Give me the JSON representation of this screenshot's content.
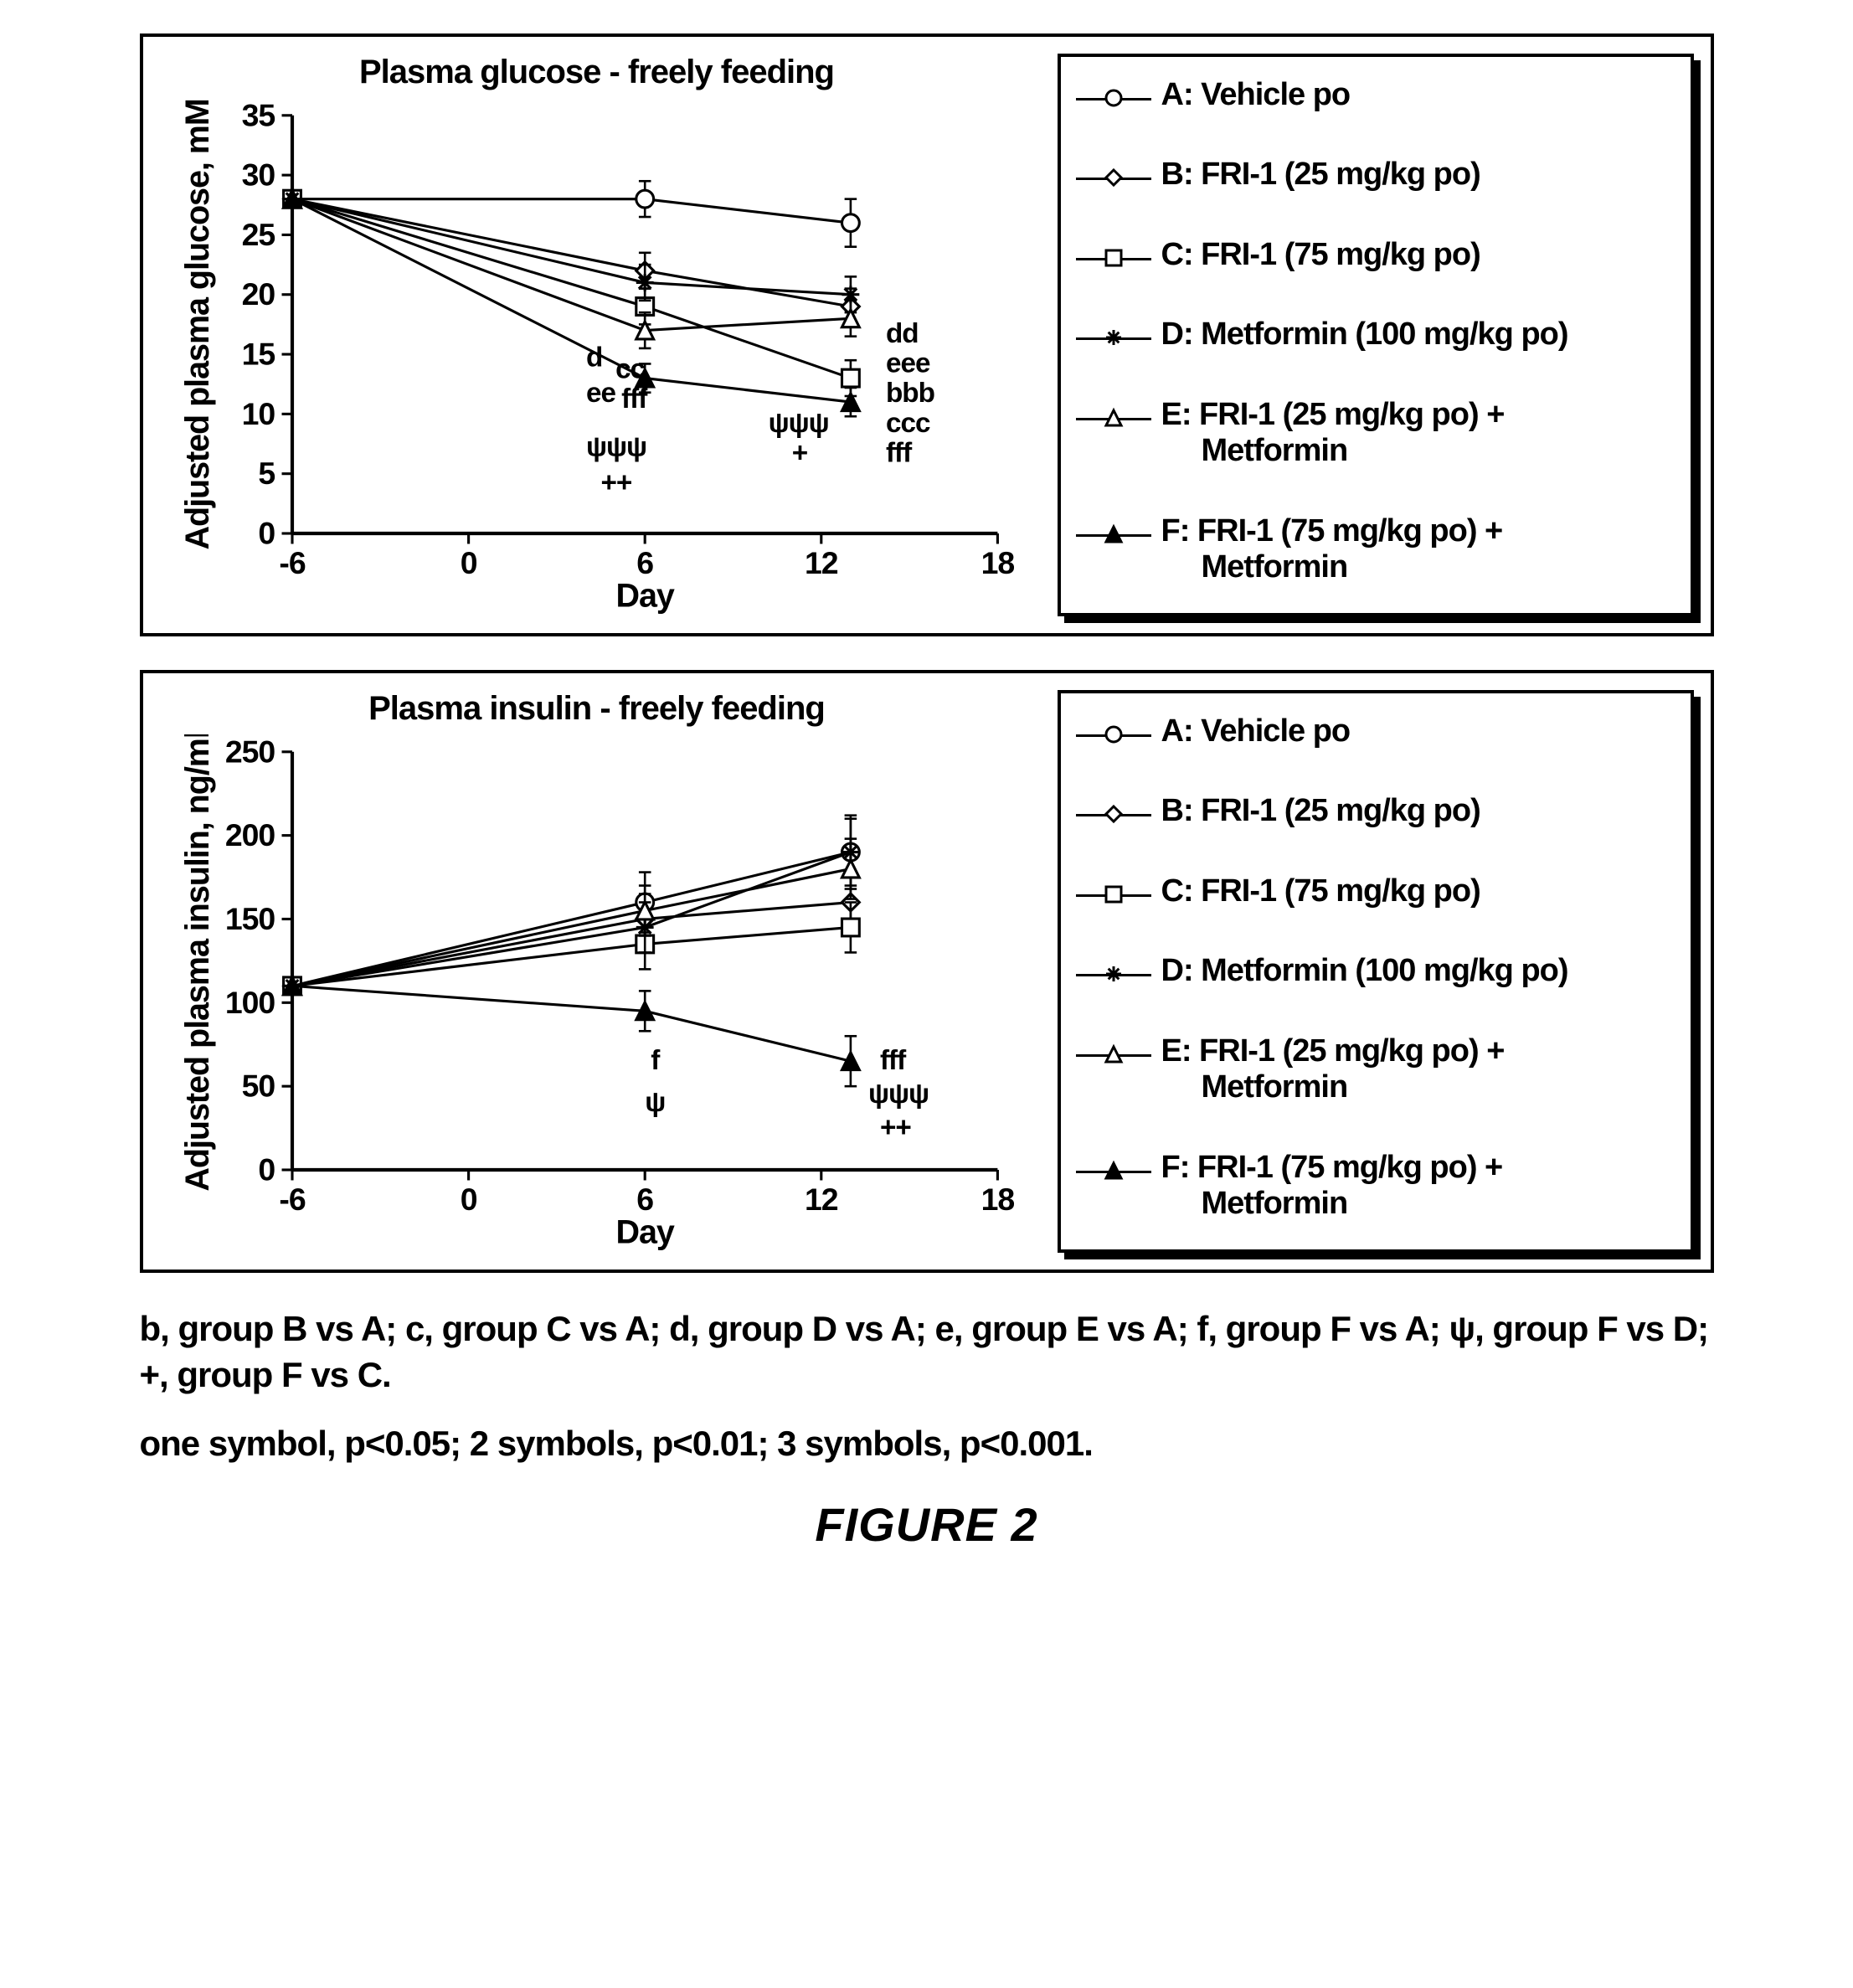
{
  "figure_label": "FIGURE 2",
  "caption_line1": "b, group B vs A; c, group C vs A; d, group D vs A; e, group E vs A; f, group F vs A; ψ, group F vs D;",
  "caption_line2": "+, group F vs C.",
  "caption_line3": "one symbol, p<0.05; 2 symbols, p<0.01; 3 symbols, p<0.001.",
  "legend": [
    {
      "key": "A",
      "label": "A: Vehicle po",
      "marker": "open-circle"
    },
    {
      "key": "B",
      "label": "B: FRI-1 (25 mg/kg po)",
      "marker": "open-diamond"
    },
    {
      "key": "C",
      "label": "C: FRI-1 (75 mg/kg po)",
      "marker": "open-square"
    },
    {
      "key": "D",
      "label": "D: Metformin (100 mg/kg po)",
      "marker": "asterisk"
    },
    {
      "key": "E",
      "label": "E: FRI-1 (25 mg/kg po) +",
      "label2": "Metformin",
      "marker": "open-triangle"
    },
    {
      "key": "F",
      "label": "F: FRI-1 (75 mg/kg po) +",
      "label2": "Metformin",
      "marker": "filled-triangle"
    }
  ],
  "colors": {
    "line": "#000000",
    "background": "#ffffff",
    "border": "#000000",
    "shadow": "#000000"
  },
  "glucose_chart": {
    "type": "line",
    "title": "Plasma glucose - freely feeding",
    "xlabel": "Day",
    "ylabel": "Adjusted plasma glucose, mM",
    "xlim": [
      -6,
      18
    ],
    "ylim": [
      0,
      35
    ],
    "xticks": [
      -6,
      0,
      6,
      12,
      18
    ],
    "yticks": [
      0,
      5,
      10,
      15,
      20,
      25,
      30,
      35
    ],
    "line_width": 3,
    "marker_size": 10,
    "series": {
      "A": {
        "x": [
          -6,
          6,
          13
        ],
        "y": [
          28,
          28,
          26
        ],
        "err": [
          0,
          1.5,
          2
        ],
        "marker": "open-circle"
      },
      "B": {
        "x": [
          -6,
          6,
          13
        ],
        "y": [
          28,
          22,
          19
        ],
        "err": [
          0,
          1.5,
          1.5
        ],
        "marker": "open-diamond"
      },
      "C": {
        "x": [
          -6,
          6,
          13
        ],
        "y": [
          28,
          19,
          13
        ],
        "err": [
          0,
          1.5,
          1.5
        ],
        "marker": "open-square"
      },
      "D": {
        "x": [
          -6,
          6,
          13
        ],
        "y": [
          28,
          21,
          20
        ],
        "err": [
          0,
          1.5,
          1.5
        ],
        "marker": "asterisk"
      },
      "E": {
        "x": [
          -6,
          6,
          13
        ],
        "y": [
          28,
          17,
          18
        ],
        "err": [
          0,
          1.5,
          1.5
        ],
        "marker": "open-triangle"
      },
      "F": {
        "x": [
          -6,
          6,
          13
        ],
        "y": [
          28,
          13,
          11
        ],
        "err": [
          0,
          1.2,
          1.2
        ],
        "marker": "filled-triangle"
      }
    },
    "annotations_day6": [
      "d",
      "cc",
      "ee",
      "fff",
      "ψψψ",
      "++"
    ],
    "annotations_day6_prefix_row1": "",
    "annotations_day13_set1": [
      "dd",
      "eee",
      "bbb",
      "ccc",
      "fff"
    ],
    "annotations_day13_set2": [
      "ψψψ",
      "+"
    ]
  },
  "insulin_chart": {
    "type": "line",
    "title": "Plasma insulin - freely feeding",
    "xlabel": "Day",
    "ylabel": "Adjusted plasma insulin, ng/ml",
    "xlim": [
      -6,
      18
    ],
    "ylim": [
      0,
      250
    ],
    "xticks": [
      -6,
      0,
      6,
      12,
      18
    ],
    "yticks": [
      0,
      50,
      100,
      150,
      200,
      250
    ],
    "line_width": 3,
    "marker_size": 10,
    "series": {
      "A": {
        "x": [
          -6,
          6,
          13
        ],
        "y": [
          110,
          160,
          190
        ],
        "err": [
          0,
          18,
          22
        ],
        "marker": "open-circle"
      },
      "B": {
        "x": [
          -6,
          6,
          13
        ],
        "y": [
          110,
          150,
          160
        ],
        "err": [
          0,
          15,
          15
        ],
        "marker": "open-diamond"
      },
      "C": {
        "x": [
          -6,
          6,
          13
        ],
        "y": [
          110,
          135,
          145
        ],
        "err": [
          0,
          15,
          15
        ],
        "marker": "open-square"
      },
      "D": {
        "x": [
          -6,
          6,
          13
        ],
        "y": [
          110,
          145,
          190
        ],
        "err": [
          0,
          15,
          20
        ],
        "marker": "asterisk"
      },
      "E": {
        "x": [
          -6,
          6,
          13
        ],
        "y": [
          110,
          155,
          180
        ],
        "err": [
          0,
          15,
          18
        ],
        "marker": "open-triangle"
      },
      "F": {
        "x": [
          -6,
          6,
          13
        ],
        "y": [
          110,
          95,
          65
        ],
        "err": [
          0,
          12,
          15
        ],
        "marker": "filled-triangle"
      }
    },
    "annotations_day6": [
      "f",
      "ψ"
    ],
    "annotations_day13": [
      "fff",
      "ψψψ",
      "++"
    ]
  }
}
